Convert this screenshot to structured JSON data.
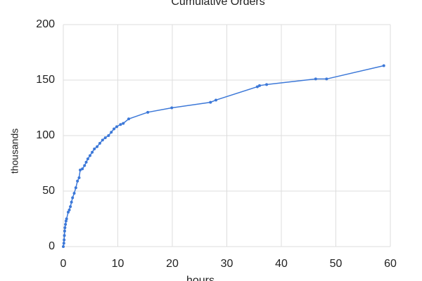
{
  "chart_data": {
    "type": "line",
    "title": "Cumulative Orders",
    "x_label": "hours",
    "y_label": "thousands",
    "x": [
      0,
      0.1,
      0.15,
      0.2,
      0.25,
      0.3,
      0.4,
      0.5,
      0.6,
      0.9,
      1.1,
      1.3,
      1.5,
      1.7,
      2,
      2.3,
      2.6,
      2.9,
      3.1,
      3.5,
      3.9,
      4.2,
      4.5,
      4.9,
      5.3,
      5.7,
      6.2,
      6.7,
      7.2,
      7.7,
      8.3,
      8.8,
      9.3,
      9.8,
      10.5,
      11,
      12,
      15.5,
      19.9,
      27,
      28,
      35.6,
      36,
      37.3,
      46.3,
      48.3,
      58.8
    ],
    "values": [
      0,
      3,
      6,
      10,
      14,
      17,
      20,
      23,
      25,
      31,
      33,
      36,
      40,
      44,
      48,
      53,
      59,
      62,
      69,
      70,
      73,
      76,
      79,
      82,
      85,
      88,
      90,
      93,
      96,
      98,
      100,
      103,
      106,
      108,
      110,
      111,
      115,
      121,
      125,
      130,
      132,
      144,
      145,
      146,
      151,
      151,
      163
    ],
    "color": "#3c78d8",
    "xlim": [
      0,
      60
    ],
    "xticks": [
      0,
      10,
      20,
      30,
      40,
      50,
      60
    ],
    "ylim": [
      0,
      200
    ],
    "yticks": [
      0,
      50,
      100,
      150,
      200
    ],
    "grid": true
  }
}
